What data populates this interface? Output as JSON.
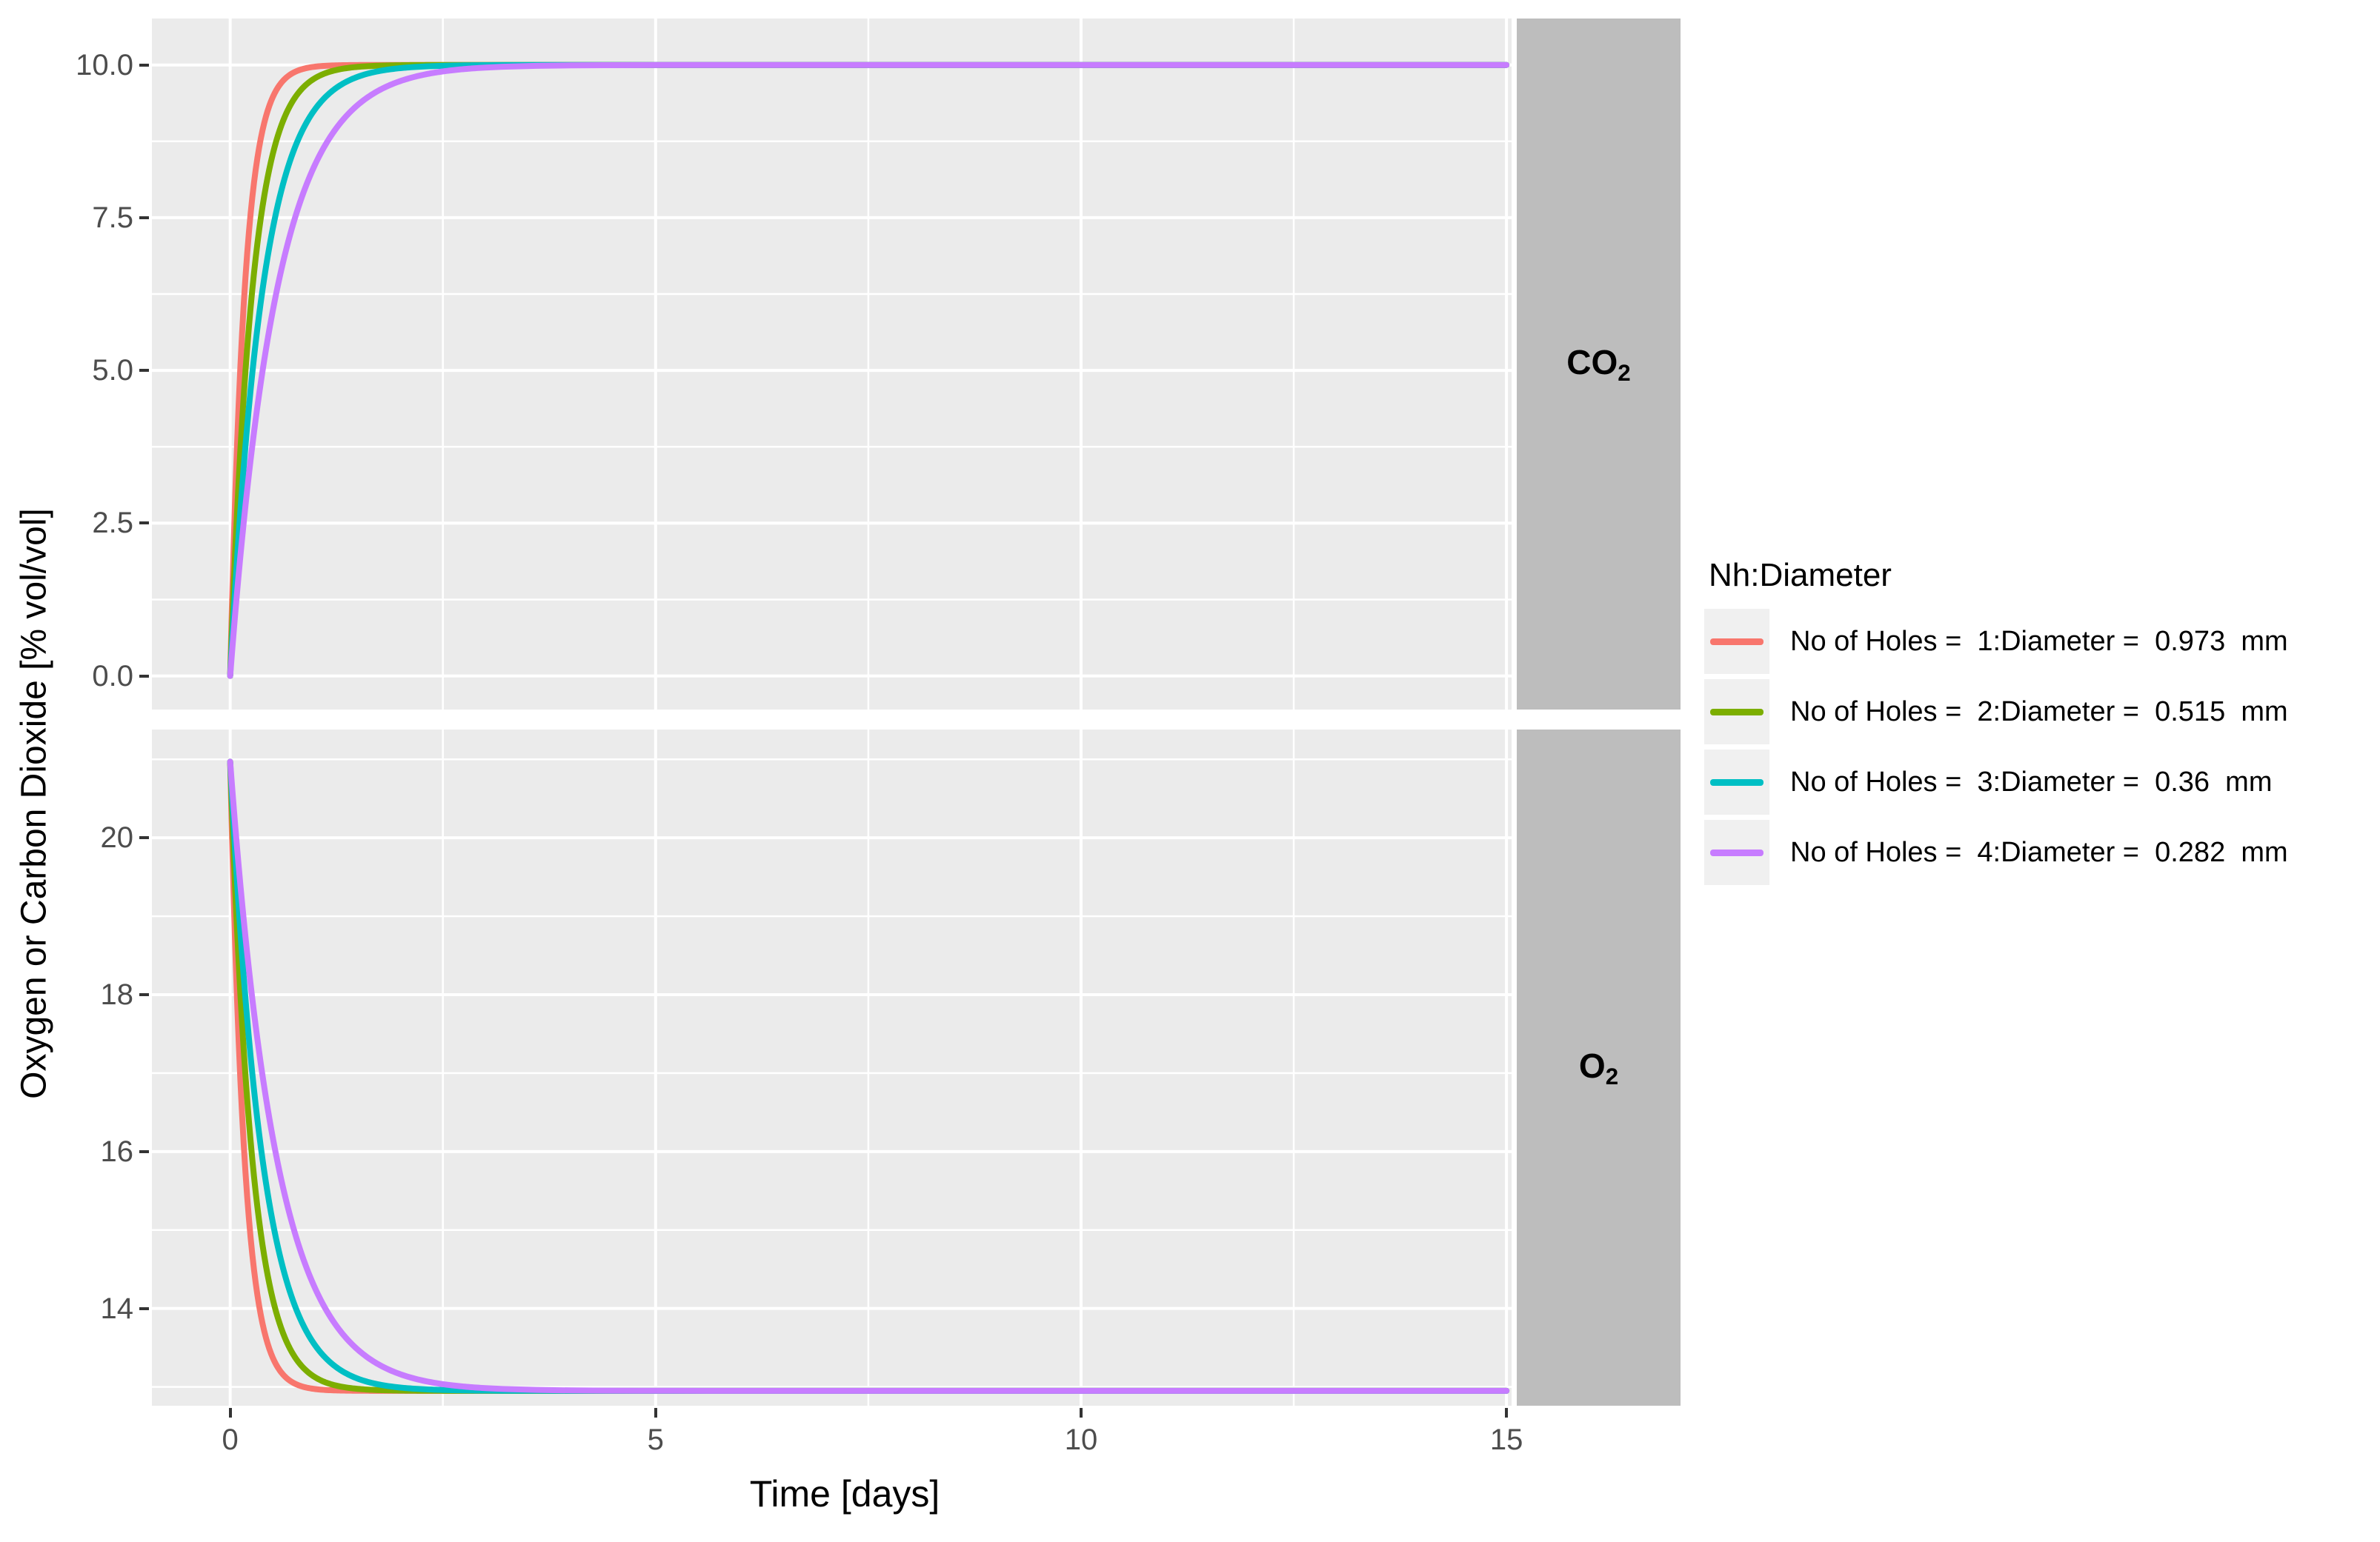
{
  "figure": {
    "background": "#FFFFFF",
    "panel_background": "#EBEBEB",
    "grid_color": "#FFFFFF",
    "strip_background": "#BDBDBD",
    "strip_text_color": "#000000",
    "tick_mark_color": "#333333",
    "tick_label_color": "#4D4D4D",
    "axis_title_color": "#000000"
  },
  "y_axis_title": "Oxygen or Carbon Dioxide [% vol/vol]",
  "x_axis_title": "Time [days]",
  "legend": {
    "title": "Nh:Diameter",
    "position": "right",
    "entries": [
      {
        "label": "No of Holes =  1:Diameter =  0.973  mm",
        "color": "#F8766D"
      },
      {
        "label": "No of Holes =  2:Diameter =  0.515  mm",
        "color": "#7CAE00"
      },
      {
        "label": "No of Holes =  3:Diameter =  0.36  mm",
        "color": "#00BFC4"
      },
      {
        "label": "No of Holes =  4:Diameter =  0.282  mm",
        "color": "#C77CFF"
      }
    ]
  },
  "chart_data": {
    "type": "line",
    "title": "",
    "xlabel": "Time [days]",
    "ylabel": "Oxygen or Carbon Dioxide [% vol/vol]",
    "grid": true,
    "legend_position": "right",
    "x_ticks": [
      0,
      5,
      10,
      15
    ],
    "x_tick_labels": [
      "0",
      "5",
      "10",
      "15"
    ],
    "x_minor_ticks": [
      2.5,
      7.5,
      12.5
    ],
    "x_data_range_days": [
      0,
      15
    ],
    "xlim": [
      -0.92,
      15.06
    ],
    "model": "value(t) = end + (start - end) * exp(-t / tau_days); curves saturate by ~2 days then stay flat to 15 days",
    "facets": [
      {
        "strip_base": "CO",
        "strip_sub": "2",
        "ylim": [
          -0.55,
          10.76
        ],
        "y_ticks": [
          0,
          2.5,
          5,
          7.5,
          10
        ],
        "y_tick_labels": [
          "0.0",
          "2.5",
          "5.0",
          "7.5",
          "10.0"
        ],
        "y_minor_ticks": [
          1.25,
          3.75,
          6.25,
          8.75
        ],
        "series": [
          {
            "name": "No of Holes = 1:Diameter = 0.973 mm",
            "color": "#F8766D",
            "start": 0.0,
            "end": 10.0,
            "tau_days": 0.17
          },
          {
            "name": "No of Holes = 2:Diameter = 0.515 mm",
            "color": "#7CAE00",
            "start": 0.0,
            "end": 10.0,
            "tau_days": 0.26
          },
          {
            "name": "No of Holes = 3:Diameter = 0.36 mm",
            "color": "#00BFC4",
            "start": 0.0,
            "end": 10.0,
            "tau_days": 0.38
          },
          {
            "name": "No of Holes = 4:Diameter = 0.282 mm",
            "color": "#C77CFF",
            "start": 0.0,
            "end": 10.0,
            "tau_days": 0.55
          }
        ]
      },
      {
        "strip_base": "O",
        "strip_sub": "2",
        "ylim": [
          12.76,
          21.38
        ],
        "y_ticks": [
          14,
          16,
          18,
          20
        ],
        "y_tick_labels": [
          "14",
          "16",
          "18",
          "20"
        ],
        "y_minor_ticks": [
          13,
          15,
          17,
          19,
          21
        ],
        "series": [
          {
            "name": "No of Holes = 1:Diameter = 0.973 mm",
            "color": "#F8766D",
            "start": 20.97,
            "end": 12.95,
            "tau_days": 0.17
          },
          {
            "name": "No of Holes = 2:Diameter = 0.515 mm",
            "color": "#7CAE00",
            "start": 20.97,
            "end": 12.95,
            "tau_days": 0.26
          },
          {
            "name": "No of Holes = 3:Diameter = 0.36 mm",
            "color": "#00BFC4",
            "start": 20.97,
            "end": 12.95,
            "tau_days": 0.38
          },
          {
            "name": "No of Holes = 4:Diameter = 0.282 mm",
            "color": "#C77CFF",
            "start": 20.97,
            "end": 12.95,
            "tau_days": 0.55
          }
        ]
      }
    ]
  }
}
